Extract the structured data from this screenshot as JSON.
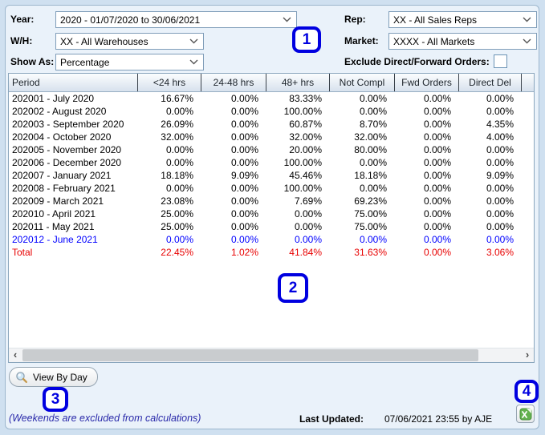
{
  "filters": {
    "year": {
      "label": "Year:",
      "value": "2020 - 01/07/2020 to 30/06/2021"
    },
    "rep": {
      "label": "Rep:",
      "value": "XX - All Sales Reps"
    },
    "wh": {
      "label": "W/H:",
      "value": "XX - All Warehouses"
    },
    "market": {
      "label": "Market:",
      "value": "XXXX - All Markets"
    },
    "show_as": {
      "label": "Show As:",
      "value": "Percentage"
    },
    "exclude": {
      "label": "Exclude Direct/Forward Orders:",
      "checked": false
    }
  },
  "table": {
    "columns": [
      "Period",
      "<24 hrs",
      "24-48 hrs",
      "48+ hrs",
      "Not Compl",
      "Fwd Orders",
      "Direct Del"
    ],
    "rows": [
      {
        "period": "202001 - July 2020",
        "values": [
          "16.67%",
          "0.00%",
          "83.33%",
          "0.00%",
          "0.00%",
          "0.00%"
        ],
        "style": "normal"
      },
      {
        "period": "202002 - August 2020",
        "values": [
          "0.00%",
          "0.00%",
          "100.00%",
          "0.00%",
          "0.00%",
          "0.00%"
        ],
        "style": "normal"
      },
      {
        "period": "202003 - September 2020",
        "values": [
          "26.09%",
          "0.00%",
          "60.87%",
          "8.70%",
          "0.00%",
          "4.35%"
        ],
        "style": "normal"
      },
      {
        "period": "202004 - October 2020",
        "values": [
          "32.00%",
          "0.00%",
          "32.00%",
          "32.00%",
          "0.00%",
          "4.00%"
        ],
        "style": "normal"
      },
      {
        "period": "202005 - November 2020",
        "values": [
          "0.00%",
          "0.00%",
          "20.00%",
          "80.00%",
          "0.00%",
          "0.00%"
        ],
        "style": "normal"
      },
      {
        "period": "202006 - December 2020",
        "values": [
          "0.00%",
          "0.00%",
          "100.00%",
          "0.00%",
          "0.00%",
          "0.00%"
        ],
        "style": "normal"
      },
      {
        "period": "202007 - January 2021",
        "values": [
          "18.18%",
          "9.09%",
          "45.46%",
          "18.18%",
          "0.00%",
          "9.09%"
        ],
        "style": "normal"
      },
      {
        "period": "202008 - February 2021",
        "values": [
          "0.00%",
          "0.00%",
          "100.00%",
          "0.00%",
          "0.00%",
          "0.00%"
        ],
        "style": "normal"
      },
      {
        "period": "202009 - March 2021",
        "values": [
          "23.08%",
          "0.00%",
          "7.69%",
          "69.23%",
          "0.00%",
          "0.00%"
        ],
        "style": "normal"
      },
      {
        "period": "202010 - April 2021",
        "values": [
          "25.00%",
          "0.00%",
          "0.00%",
          "75.00%",
          "0.00%",
          "0.00%"
        ],
        "style": "normal"
      },
      {
        "period": "202011 - May 2021",
        "values": [
          "25.00%",
          "0.00%",
          "0.00%",
          "75.00%",
          "0.00%",
          "0.00%"
        ],
        "style": "normal"
      },
      {
        "period": "202012 - June 2021",
        "values": [
          "0.00%",
          "0.00%",
          "0.00%",
          "0.00%",
          "0.00%",
          "0.00%"
        ],
        "style": "current"
      },
      {
        "period": "Total",
        "values": [
          "22.45%",
          "1.02%",
          "41.84%",
          "31.63%",
          "0.00%",
          "3.06%"
        ],
        "style": "total"
      }
    ]
  },
  "annotations": {
    "box1": "1",
    "box2": "2",
    "box3": "3",
    "box4": "4"
  },
  "footer": {
    "view_by_day_label": "View By Day",
    "note": "(Weekends are excluded from calculations)",
    "last_updated_label": "Last Updated:",
    "last_updated_value": "07/06/2021 23:55 by AJE"
  },
  "icons": {
    "dropdown": "chevron-down-icon",
    "view_by_day": "magnifier-icon",
    "export": "excel-export-icon"
  },
  "colors": {
    "annotation_blue": "#0000e0",
    "current_period_blue": "#0000ff",
    "total_red": "#e80000",
    "note_blue": "#2a2aaa",
    "panel_background": "#eaf2fa",
    "outer_background": "#cfe0f0"
  }
}
